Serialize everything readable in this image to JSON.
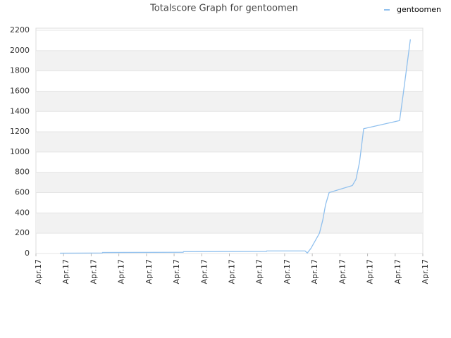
{
  "chart_data": {
    "type": "line",
    "title": "Totalscore Graph for gentoomen",
    "x": [
      0.87,
      2.4,
      2.41,
      5.33,
      5.34,
      8.34,
      8.35,
      9.74,
      9.82,
      9.95,
      10.26,
      10.38,
      10.48,
      10.61,
      11.45,
      11.58,
      11.71,
      11.86,
      13.16,
      13.29,
      13.42,
      13.55
    ],
    "series": [
      {
        "name": "gentoomen",
        "color": "#90c0ee",
        "values": [
          3,
          5,
          10,
          12,
          18,
          20,
          25,
          25,
          5,
          50,
          200,
          330,
          480,
          600,
          670,
          730,
          900,
          1230,
          1310,
          1570,
          1840,
          2110
        ]
      }
    ],
    "xlim": [
      0,
      14
    ],
    "xticks": [
      {
        "value": 0,
        "label": "Apr.17"
      },
      {
        "value": 1,
        "label": "Apr.17"
      },
      {
        "value": 2,
        "label": "Apr.17"
      },
      {
        "value": 3,
        "label": "Apr.17"
      },
      {
        "value": 4,
        "label": "Apr.17"
      },
      {
        "value": 5,
        "label": "Apr.17"
      },
      {
        "value": 6,
        "label": "Apr.17"
      },
      {
        "value": 7,
        "label": "Apr.17"
      },
      {
        "value": 8,
        "label": "Apr.17"
      },
      {
        "value": 9,
        "label": "Apr.17"
      },
      {
        "value": 10,
        "label": "Apr.17"
      },
      {
        "value": 11,
        "label": "Apr.17"
      },
      {
        "value": 12,
        "label": "Apr.17"
      },
      {
        "value": 13,
        "label": "Apr.17"
      },
      {
        "value": 14,
        "label": "Apr.17"
      }
    ],
    "ylim": [
      0,
      2200
    ],
    "yticks": [
      0,
      200,
      400,
      600,
      800,
      1000,
      1200,
      1400,
      1600,
      1800,
      2000,
      2200
    ],
    "grid": true,
    "legend": "top-right"
  }
}
